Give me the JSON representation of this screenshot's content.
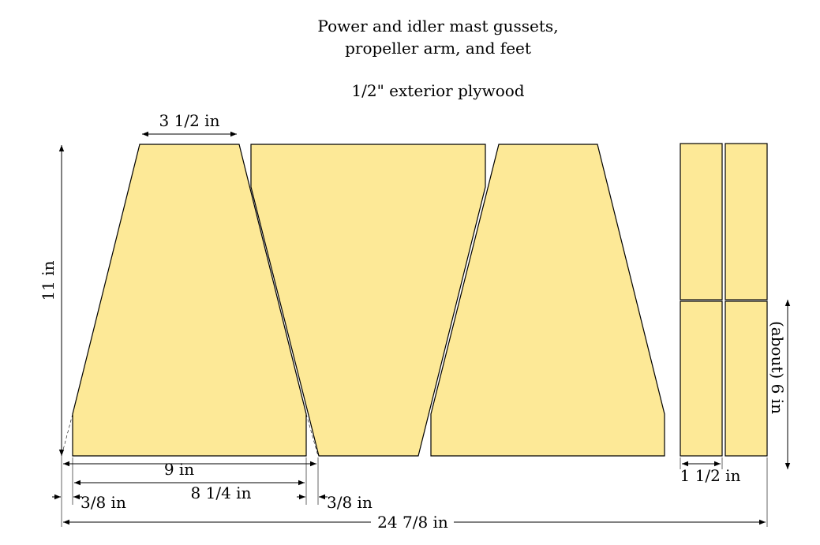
{
  "title": {
    "lines": [
      "Power and idler mast gussets,",
      "propeller arm, and feet"
    ],
    "material": "1/2\" exterior plywood"
  },
  "dimensions": {
    "top_width": "3 1/2 in",
    "height": "11 in",
    "base_width": "9 in",
    "inner_width": "8 1/4 in",
    "left_offset": "3/8 in",
    "right_offset": "3/8 in",
    "total_width": "24 7/8 in",
    "foot_length": "(about) 6 in",
    "foot_width": "1 1/2 in"
  }
}
